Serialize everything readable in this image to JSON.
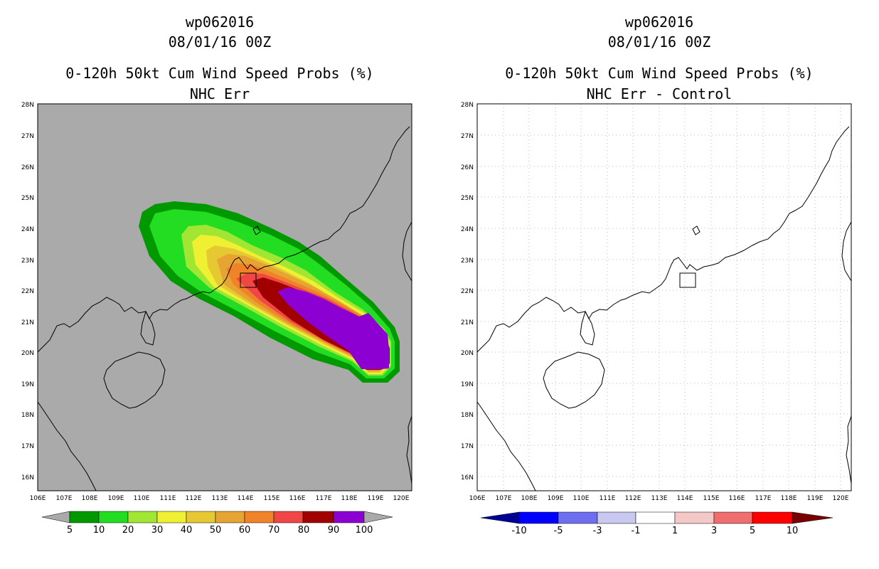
{
  "left_panel": {
    "storm_id": "wp062016",
    "datetime": "08/01/16 00Z",
    "product": "0-120h 50kt Cum Wind Speed Probs (%)",
    "subtitle": "NHC Err",
    "lat_labels": [
      "28N",
      "27N",
      "26N",
      "25N",
      "24N",
      "23N",
      "22N",
      "21N",
      "20N",
      "19N",
      "18N",
      "17N",
      "16N"
    ],
    "lon_labels": [
      "106E",
      "107E",
      "108E",
      "109E",
      "110E",
      "111E",
      "112E",
      "113E",
      "114E",
      "115E",
      "116E",
      "117E",
      "118E",
      "119E",
      "120E"
    ],
    "colorbar": {
      "labels": [
        "5",
        "10",
        "20",
        "30",
        "40",
        "50",
        "60",
        "70",
        "80",
        "90",
        "100"
      ],
      "colors": [
        "#009a00",
        "#22dd22",
        "#a0e632",
        "#f0f032",
        "#e6c832",
        "#e6a532",
        "#f08228",
        "#f04646",
        "#a00000",
        "#8c00d2"
      ]
    }
  },
  "right_panel": {
    "storm_id": "wp062016",
    "datetime": "08/01/16 00Z",
    "product": "0-120h 50kt Cum Wind Speed Probs (%)",
    "subtitle": "NHC Err - Control",
    "lat_labels": [
      "28N",
      "27N",
      "26N",
      "25N",
      "24N",
      "23N",
      "22N",
      "21N",
      "20N",
      "19N",
      "18N",
      "17N",
      "16N"
    ],
    "lon_labels": [
      "106E",
      "107E",
      "108E",
      "109E",
      "110E",
      "111E",
      "112E",
      "113E",
      "114E",
      "115E",
      "116E",
      "117E",
      "118E",
      "119E",
      "120E"
    ],
    "colorbar": {
      "labels": [
        "-10",
        "-5",
        "-3",
        "-1",
        "1",
        "3",
        "5",
        "10"
      ],
      "colors": [
        "#000096",
        "#0000ff",
        "#6e6ef0",
        "#c8c8f0",
        "#ffffff",
        "#f5c8c8",
        "#f06e6e",
        "#ff0000",
        "#780000"
      ]
    }
  }
}
